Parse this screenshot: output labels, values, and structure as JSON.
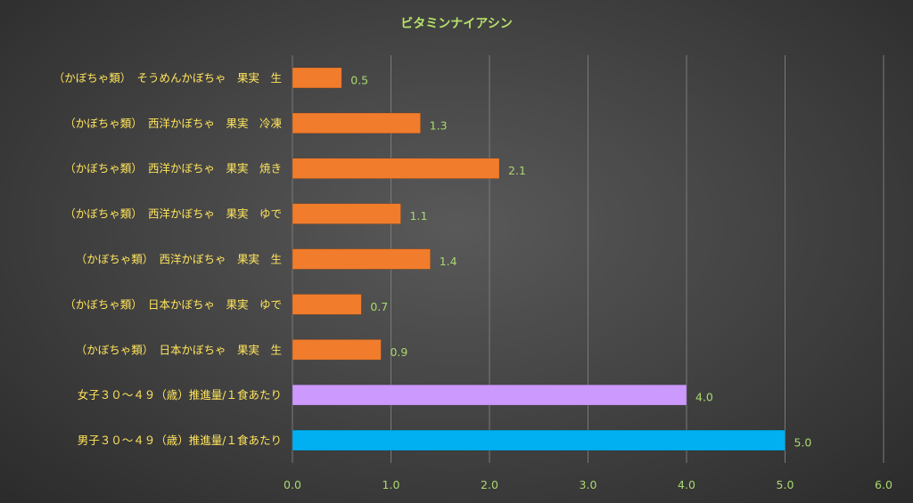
{
  "chart_data": {
    "type": "bar",
    "orientation": "horizontal",
    "title": "ビタミンナイアシン",
    "categories": [
      "（かぼちゃ類）　そうめんかぼちゃ　果実　生",
      "（かぼちゃ類）　西洋かぼちゃ　果実　冷凍",
      "（かぼちゃ類）　西洋かぼちゃ　果実　焼き",
      "（かぼちゃ類）　西洋かぼちゃ　果実　ゆで",
      "（かぼちゃ類）　西洋かぼちゃ　果実　生",
      "（かぼちゃ類）　日本かぼちゃ　果実　ゆで",
      "（かぼちゃ類）　日本かぼちゃ　果実　生",
      "女子３０～４９（歳）推進量/１食あたり",
      "男子３０～４９（歳）推進量/１食あたり"
    ],
    "values": [
      0.5,
      1.3,
      2.1,
      1.1,
      1.4,
      0.7,
      0.9,
      4.0,
      5.0
    ],
    "data_labels": [
      "0.5",
      "1.3",
      "2.1",
      "1.1",
      "1.4",
      "0.7",
      "0.9",
      "4.0",
      "5.0"
    ],
    "bar_colors": [
      "#f07c2c",
      "#f07c2c",
      "#f07c2c",
      "#f07c2c",
      "#f07c2c",
      "#f07c2c",
      "#f07c2c",
      "#cc99ff",
      "#00b0f0"
    ],
    "xlim": [
      0,
      6
    ],
    "xticks": [
      "0.0",
      "1.0",
      "2.0",
      "3.0",
      "4.0",
      "5.0",
      "6.0"
    ],
    "xlabel": "",
    "ylabel": "",
    "grid": true,
    "legend": "none"
  }
}
